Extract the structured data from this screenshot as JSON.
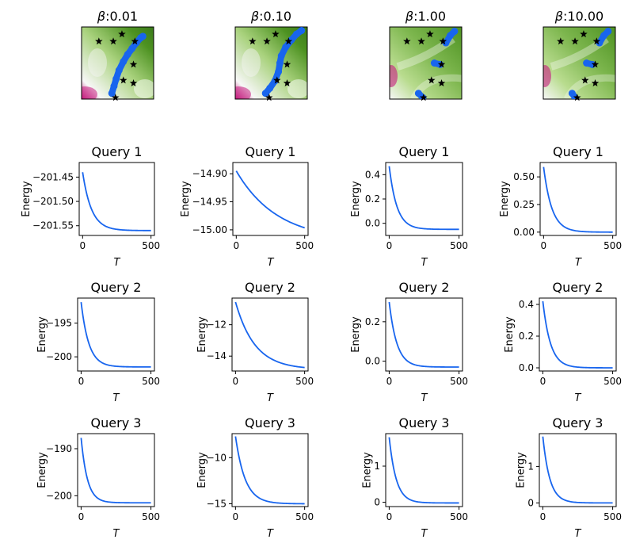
{
  "chart_data": {
    "type": "figure-grid",
    "line_color": "#1865ee",
    "marker_color": "#1865ee",
    "star_color": "#000000",
    "colormap_low": "#c51b7d",
    "colormap_mid": "#f7f7f7",
    "colormap_high": "#4d9221",
    "landscapes": [
      {
        "title_symbol": "β",
        "title_value": ":0.01",
        "stars": [
          [
            0.24,
            0.2
          ],
          [
            0.44,
            0.2
          ],
          [
            0.56,
            0.1
          ],
          [
            0.74,
            0.2
          ],
          [
            0.72,
            0.52
          ],
          [
            0.58,
            0.74
          ],
          [
            0.72,
            0.78
          ],
          [
            0.47,
            0.98
          ]
        ],
        "trajectory": [
          [
            0.42,
            0.92
          ],
          [
            0.45,
            0.82
          ],
          [
            0.48,
            0.72
          ],
          [
            0.52,
            0.6
          ],
          [
            0.58,
            0.48
          ],
          [
            0.64,
            0.38
          ],
          [
            0.7,
            0.3
          ],
          [
            0.76,
            0.22
          ],
          [
            0.82,
            0.15
          ],
          [
            0.85,
            0.13
          ]
        ]
      },
      {
        "title_symbol": "β",
        "title_value": ":0.10",
        "stars": [
          [
            0.24,
            0.2
          ],
          [
            0.44,
            0.2
          ],
          [
            0.56,
            0.1
          ],
          [
            0.74,
            0.2
          ],
          [
            0.72,
            0.52
          ],
          [
            0.58,
            0.74
          ],
          [
            0.72,
            0.78
          ],
          [
            0.47,
            0.98
          ]
        ],
        "trajectory": [
          [
            0.42,
            0.92
          ],
          [
            0.48,
            0.85
          ],
          [
            0.55,
            0.75
          ],
          [
            0.6,
            0.62
          ],
          [
            0.62,
            0.5
          ],
          [
            0.64,
            0.4
          ],
          [
            0.7,
            0.28
          ],
          [
            0.78,
            0.18
          ],
          [
            0.85,
            0.1
          ],
          [
            0.92,
            0.05
          ]
        ]
      },
      {
        "title_symbol": "β",
        "title_value": ":1.00",
        "stars": [
          [
            0.24,
            0.2
          ],
          [
            0.44,
            0.2
          ],
          [
            0.56,
            0.1
          ],
          [
            0.74,
            0.2
          ],
          [
            0.72,
            0.52
          ],
          [
            0.58,
            0.74
          ],
          [
            0.72,
            0.78
          ],
          [
            0.47,
            0.98
          ]
        ],
        "segments": [
          [
            [
              0.78,
              0.22
            ],
            [
              0.84,
              0.12
            ],
            [
              0.9,
              0.06
            ]
          ],
          [
            [
              0.62,
              0.5
            ],
            [
              0.7,
              0.52
            ]
          ],
          [
            [
              0.4,
              0.92
            ],
            [
              0.46,
              0.98
            ]
          ]
        ]
      },
      {
        "title_symbol": "β",
        "title_value": ":10.00",
        "stars": [
          [
            0.24,
            0.2
          ],
          [
            0.44,
            0.2
          ],
          [
            0.56,
            0.1
          ],
          [
            0.74,
            0.2
          ],
          [
            0.72,
            0.52
          ],
          [
            0.58,
            0.74
          ],
          [
            0.72,
            0.78
          ],
          [
            0.47,
            0.98
          ]
        ],
        "segments": [
          [
            [
              0.78,
              0.22
            ],
            [
              0.84,
              0.12
            ],
            [
              0.9,
              0.06
            ]
          ],
          [
            [
              0.6,
              0.5
            ],
            [
              0.68,
              0.52
            ]
          ],
          [
            [
              0.4,
              0.92
            ],
            [
              0.44,
              0.98
            ]
          ]
        ]
      }
    ],
    "energy_plots": [
      [
        {
          "title": "Query 1",
          "ylabel": "Energy",
          "xlabel": "T",
          "xlim": [
            -25,
            525
          ],
          "ylim": [
            -201.57,
            -201.42
          ],
          "xticks": [
            0,
            500
          ],
          "yticks": [
            -201.45,
            -201.5,
            -201.55
          ],
          "ytick_labels": [
            "−201.45",
            "−201.50",
            "−201.55"
          ],
          "start": -201.44,
          "end": -201.56,
          "tau": 65
        },
        {
          "title": "Query 2",
          "ylabel": "Energy",
          "xlabel": "T",
          "xlim": [
            -25,
            525
          ],
          "ylim": [
            -202.1,
            -191.3
          ],
          "xticks": [
            0,
            500
          ],
          "yticks": [
            -195,
            -200
          ],
          "ytick_labels": [
            "−195",
            "−200"
          ],
          "start": -191.9,
          "end": -201.5,
          "tau": 55
        },
        {
          "title": "Query 3",
          "ylabel": "Energy",
          "xlabel": "T",
          "xlim": [
            -25,
            525
          ],
          "ylim": [
            -202.3,
            -186.8
          ],
          "xticks": [
            0,
            500
          ],
          "yticks": [
            -190,
            -200
          ],
          "ytick_labels": [
            "−190",
            "−200"
          ],
          "start": -187.7,
          "end": -201.5,
          "tau": 45
        }
      ],
      [
        {
          "title": "Query 1",
          "ylabel": "Energy",
          "xlabel": "T",
          "xlim": [
            -25,
            525
          ],
          "ylim": [
            -15.01,
            -14.88
          ],
          "xticks": [
            0,
            500
          ],
          "yticks": [
            -14.9,
            -14.95,
            -15.0
          ],
          "ytick_labels": [
            "−14.90",
            "−14.95",
            "−15.00"
          ],
          "start": -14.895,
          "end": -15.02,
          "tau": 300
        },
        {
          "title": "Query 2",
          "ylabel": "Energy",
          "xlabel": "T",
          "xlim": [
            -25,
            525
          ],
          "ylim": [
            -14.95,
            -10.3
          ],
          "xticks": [
            0,
            500
          ],
          "yticks": [
            -12,
            -14
          ],
          "ytick_labels": [
            "−12",
            "−14"
          ],
          "start": -10.55,
          "end": -14.85,
          "tau": 140
        },
        {
          "title": "Query 3",
          "ylabel": "Energy",
          "xlabel": "T",
          "xlim": [
            -25,
            525
          ],
          "ylim": [
            -15.3,
            -7.4
          ],
          "xticks": [
            0,
            500
          ],
          "yticks": [
            -10,
            -15
          ],
          "ytick_labels": [
            "−10",
            "−15"
          ],
          "start": -7.7,
          "end": -15.0,
          "tau": 70
        }
      ],
      [
        {
          "title": "Query 1",
          "ylabel": "Energy",
          "xlabel": "T",
          "xlim": [
            -25,
            525
          ],
          "ylim": [
            -0.1,
            0.5
          ],
          "xticks": [
            0,
            500
          ],
          "yticks": [
            0.4,
            0.2,
            0.0
          ],
          "ytick_labels": [
            "0.4",
            "0.2",
            "0.0"
          ],
          "start": 0.47,
          "end": -0.05,
          "tau": 55
        },
        {
          "title": "Query 2",
          "ylabel": "Energy",
          "xlabel": "T",
          "xlim": [
            -25,
            525
          ],
          "ylim": [
            -0.05,
            0.32
          ],
          "xticks": [
            0,
            500
          ],
          "yticks": [
            0.2,
            0.0
          ],
          "ytick_labels": [
            "0.2",
            "0.0"
          ],
          "start": 0.3,
          "end": -0.03,
          "tau": 55
        },
        {
          "title": "Query 3",
          "ylabel": "Energy",
          "xlabel": "T",
          "xlim": [
            -25,
            525
          ],
          "ylim": [
            -0.12,
            1.9
          ],
          "xticks": [
            0,
            500
          ],
          "yticks": [
            1,
            0
          ],
          "ytick_labels": [
            "1",
            "0"
          ],
          "start": 1.8,
          "end": -0.02,
          "tau": 50
        }
      ],
      [
        {
          "title": "Query 1",
          "ylabel": "Energy",
          "xlabel": "T",
          "xlim": [
            -25,
            525
          ],
          "ylim": [
            -0.03,
            0.63
          ],
          "xticks": [
            0,
            500
          ],
          "yticks": [
            0.5,
            0.25,
            0.0
          ],
          "ytick_labels": [
            "0.50",
            "0.25",
            "0.00"
          ],
          "start": 0.59,
          "end": 0.0,
          "tau": 60
        },
        {
          "title": "Query 2",
          "ylabel": "Energy",
          "xlabel": "T",
          "xlim": [
            -25,
            525
          ],
          "ylim": [
            -0.02,
            0.44
          ],
          "xticks": [
            0,
            500
          ],
          "yticks": [
            0.4,
            0.2,
            0.0
          ],
          "ytick_labels": [
            "0.4",
            "0.2",
            "0.0"
          ],
          "start": 0.42,
          "end": 0.0,
          "tau": 55
        },
        {
          "title": "Query 3",
          "ylabel": "Energy",
          "xlabel": "T",
          "xlim": [
            -25,
            525
          ],
          "ylim": [
            -0.1,
            1.9
          ],
          "xticks": [
            0,
            500
          ],
          "yticks": [
            1,
            0
          ],
          "ytick_labels": [
            "1",
            "0"
          ],
          "start": 1.82,
          "end": 0.0,
          "tau": 50
        }
      ]
    ]
  }
}
